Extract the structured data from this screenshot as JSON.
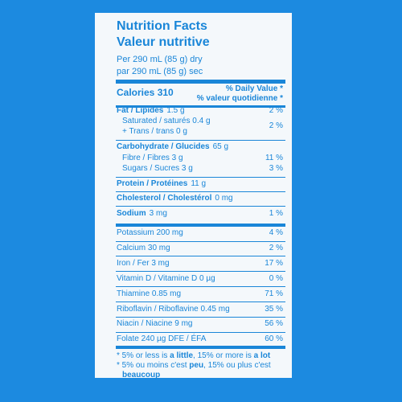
{
  "header": {
    "title": "Nutrition Facts",
    "title_fr": "Valeur nutritive",
    "serving": "Per 290 mL (85 g) dry",
    "serving_fr": "par 290 mL (85 g) sec"
  },
  "calories": {
    "label": "Calories 310",
    "dv": "% Daily Value *",
    "dv_fr": "% valeur quotidienne *"
  },
  "fat": {
    "name": "Fat / Lipides",
    "amount": "1.5 g",
    "dv": "2 %",
    "saturated": "Saturated / saturés 0.4 g",
    "trans": "+ Trans / trans 0 g",
    "sat_trans_dv": "2 %"
  },
  "carbohydrate": {
    "name": "Carbohydrate / Glucides",
    "amount": "65 g",
    "fibre": "Fibre / Fibres 3 g",
    "fibre_dv": "11 %",
    "sugars": "Sugars / Sucres 3 g",
    "sugars_dv": "3 %"
  },
  "protein": {
    "name": "Protein / Protéines",
    "amount": "11 g"
  },
  "cholesterol": {
    "name": "Cholesterol / Cholestérol",
    "amount": "0 mg"
  },
  "sodium": {
    "name": "Sodium",
    "amount": "3 mg",
    "dv": "1 %"
  },
  "micronutrients": [
    {
      "label": "Potassium 200 mg",
      "dv": "4 %"
    },
    {
      "label": "Calcium 30 mg",
      "dv": "2 %"
    },
    {
      "label": "Iron / Fer 3 mg",
      "dv": "17 %"
    },
    {
      "label": "Vitamin D / Vitamine D 0 µg",
      "dv": "0 %"
    },
    {
      "label": "Thiamine 0.85 mg",
      "dv": "71 %"
    },
    {
      "label": "Riboflavin / Riboflavine 0.45 mg",
      "dv": "35 %"
    },
    {
      "label": "Niacin / Niacine 9 mg",
      "dv": "56 %"
    },
    {
      "label": "Folate 240 µg DFE / ÉFA",
      "dv": "60 %"
    }
  ],
  "footnote": [
    {
      "text": "* 5% or less is ",
      "bold": false
    },
    {
      "text": "a little",
      "bold": true
    },
    {
      "text": ", 15% or more is ",
      "bold": false
    },
    {
      "text": "a lot",
      "bold": true
    }
  ],
  "footnote_fr": [
    {
      "text": "* 5% ou moins c'est ",
      "bold": false
    },
    {
      "text": "peu",
      "bold": true
    },
    {
      "text": ", 15% ou plus c'est ",
      "bold": false
    },
    {
      "text": "beaucoup",
      "bold": true
    }
  ]
}
